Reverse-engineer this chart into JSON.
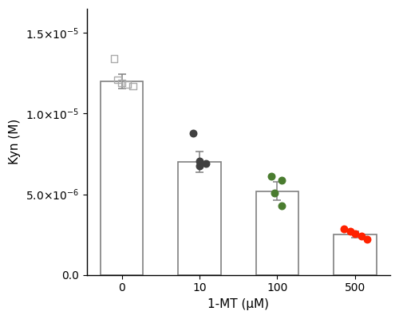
{
  "categories": [
    "0",
    "10",
    "100",
    "500"
  ],
  "bar_means": [
    1.2e-05,
    7e-06,
    5.2e-06,
    2.5e-06
  ],
  "bar_errors": [
    4.5e-07,
    6.5e-07,
    5.5e-07,
    1.8e-07
  ],
  "bar_color": "white",
  "bar_edge_color": "#808080",
  "scatter_data": {
    "0": [
      1.34e-05,
      1.21e-05,
      1.19e-05,
      1.18e-05,
      1.17e-05
    ],
    "10": [
      8.8e-06,
      7.05e-06,
      6.9e-06,
      6.75e-06
    ],
    "100": [
      6.1e-06,
      5.85e-06,
      5.1e-06,
      4.3e-06
    ],
    "500": [
      2.85e-06,
      2.7e-06,
      2.55e-06,
      2.4e-06,
      2.2e-06
    ]
  },
  "scatter_colors": [
    "#aaaaaa",
    "#404040",
    "#4a7c2f",
    "#ff2200"
  ],
  "scatter_markers": [
    "s",
    "o",
    "o",
    "o"
  ],
  "scatter_edgecolors": [
    "#aaaaaa",
    "#404040",
    "#4a7c2f",
    "#ff2200"
  ],
  "scatter_facecolors": [
    "none",
    "#404040",
    "#4a7c2f",
    "#ff2200"
  ],
  "xlabel": "1-MT (μM)",
  "ylabel": "Kyn (M)",
  "ylim": [
    0,
    1.65e-05
  ],
  "yticks": [
    0,
    5e-06,
    1e-05,
    1.5e-05
  ],
  "bar_width": 0.55,
  "figsize": [
    5.0,
    4.0
  ],
  "dpi": 100
}
